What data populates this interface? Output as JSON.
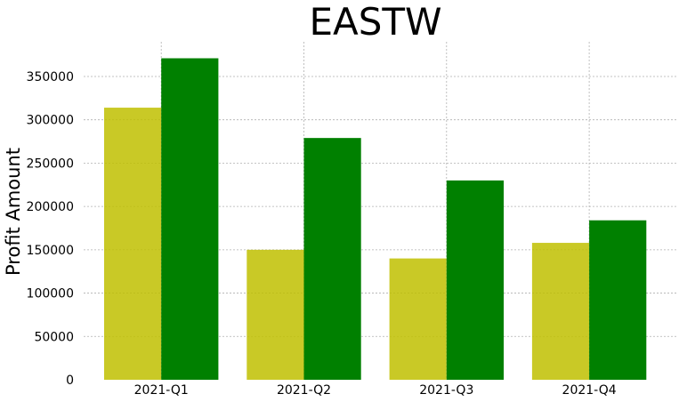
{
  "chart_data": {
    "type": "bar",
    "title": "EASTW",
    "xlabel": "",
    "ylabel": "Profit Amount",
    "categories": [
      "2021-Q1",
      "2021-Q2",
      "2021-Q3",
      "2021-Q4"
    ],
    "series": [
      {
        "color": "#bfbf00",
        "values": [
          314000,
          150000,
          140000,
          158000
        ]
      },
      {
        "color": "#008000",
        "values": [
          371000,
          279000,
          230000,
          184000
        ]
      }
    ],
    "ylim": [
      0,
      390000
    ],
    "yticks": [
      0,
      50000,
      100000,
      150000,
      200000,
      250000,
      300000,
      350000
    ],
    "ytick_labels": [
      "0",
      "50000",
      "100000",
      "150000",
      "200000",
      "250000",
      "300000",
      "350000"
    ],
    "grid": true,
    "legend": "none"
  }
}
